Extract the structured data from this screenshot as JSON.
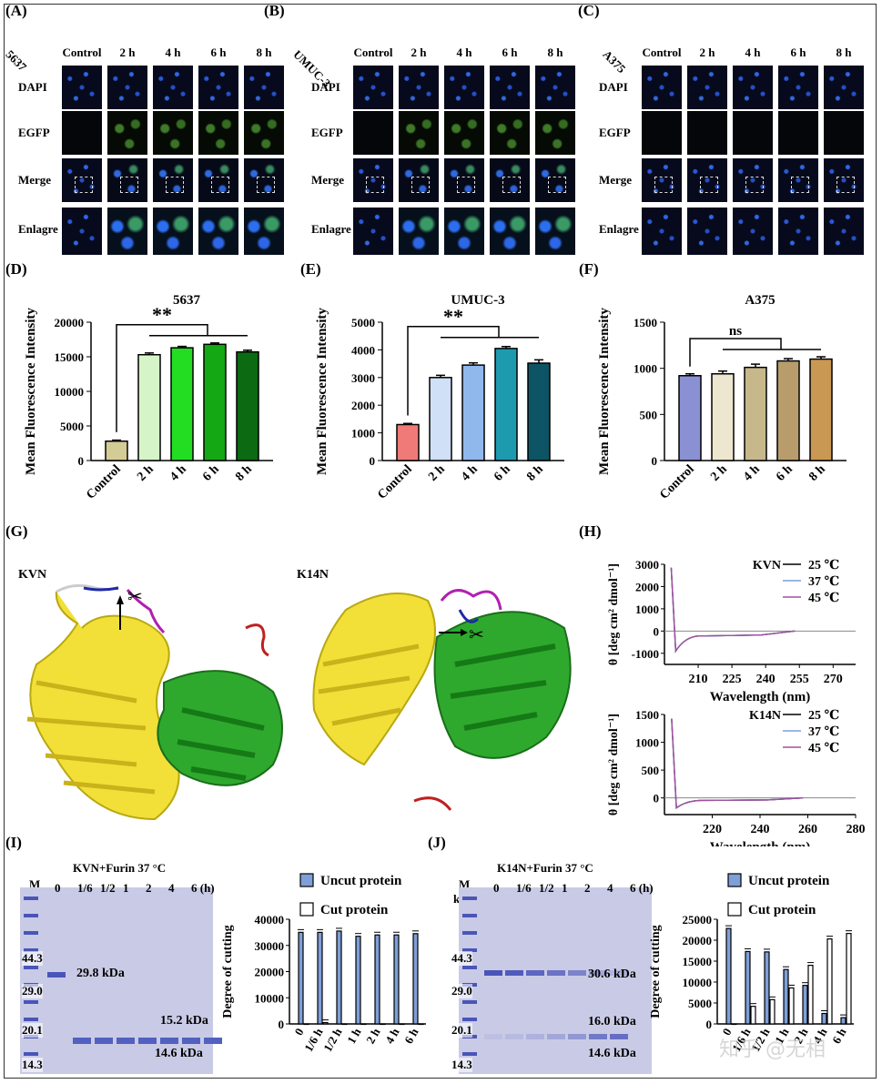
{
  "panels": {
    "A": {
      "label": "(A)",
      "cell_line": "5637",
      "columns": [
        "Control",
        "2 h",
        "4 h",
        "6 h",
        "8 h"
      ],
      "rows": [
        "DAPI",
        "EGFP",
        "Merge",
        "Enlagre"
      ]
    },
    "B": {
      "label": "(B)",
      "cell_line": "UMUC-3",
      "columns": [
        "Control",
        "2 h",
        "4 h",
        "6 h",
        "8 h"
      ],
      "rows": [
        "DAPI",
        "EGFP",
        "Merge",
        "Enlagre"
      ]
    },
    "C": {
      "label": "(C)",
      "cell_line": "A375",
      "columns": [
        "Control",
        "2 h",
        "4 h",
        "6 h",
        "8 h"
      ],
      "rows": [
        "DAPI",
        "EGFP",
        "Merge",
        "Enlagre"
      ]
    },
    "D": {
      "label": "(D)"
    },
    "E": {
      "label": "(E)"
    },
    "F": {
      "label": "(F)"
    },
    "G": {
      "label": "(G)",
      "structures": [
        "KVN",
        "K14N"
      ]
    },
    "H": {
      "label": "(H)"
    },
    "I": {
      "label": "(I)",
      "gel_title": "KVN+Furin 37 °C",
      "marker": "M",
      "marker_unit": "kDa",
      "lanes": [
        "0",
        "1/6",
        "1/2",
        "1",
        "2",
        "4",
        "6 (h)"
      ],
      "markers": [
        "44.3",
        "29.0",
        "20.1",
        "14.3"
      ],
      "bands": [
        "29.8 kDa",
        "15.2 kDa",
        "14.6 kDa"
      ]
    },
    "J": {
      "label": "(J)",
      "gel_title": "K14N+Furin 37 °C",
      "marker": "M",
      "marker_unit": "kDa",
      "lanes": [
        "0",
        "1/6",
        "1/2",
        "1",
        "2",
        "4",
        "6 (h)"
      ],
      "markers": [
        "44.3",
        "29.0",
        "20.1",
        "14.3"
      ],
      "bands": [
        "30.6 kDa",
        "16.0 kDa",
        "14.6 kDa"
      ]
    }
  },
  "watermark": "知乎 @无相",
  "colors": {
    "bars_D": [
      "#d4cc95",
      "#d5f5c8",
      "#22dd22",
      "#14a814",
      "#0b6a12"
    ],
    "bars_E": [
      "#f07a78",
      "#cfe0f7",
      "#90b8ec",
      "#1e9aae",
      "#0d5464"
    ],
    "bars_F": [
      "#8a91d3",
      "#eee7cf",
      "#c7b88c",
      "#b89c6c",
      "#c99852"
    ]
  },
  "chart_data": [
    {
      "id": "D",
      "type": "bar",
      "title": "5637",
      "ylabel": "Mean Fluorescence Intensity",
      "categories": [
        "Control",
        "2 h",
        "4 h",
        "6 h",
        "8 h"
      ],
      "values": [
        2800,
        15300,
        16300,
        16800,
        15700
      ],
      "errors": [
        150,
        250,
        200,
        200,
        250
      ],
      "ylim": [
        0,
        20000
      ],
      "yticks": [
        "0",
        "5000",
        "10000",
        "15000",
        "20000"
      ],
      "significance": "**"
    },
    {
      "id": "E",
      "type": "bar",
      "title": "UMUC-3",
      "ylabel": "Mean Fluorescence Intensity",
      "categories": [
        "Control",
        "2 h",
        "4 h",
        "6 h",
        "8 h"
      ],
      "values": [
        1300,
        3000,
        3450,
        4050,
        3520
      ],
      "errors": [
        40,
        80,
        80,
        70,
        120
      ],
      "ylim": [
        0,
        5000
      ],
      "yticks": [
        "0",
        "1000",
        "2000",
        "3000",
        "4000",
        "5000"
      ],
      "significance": "**"
    },
    {
      "id": "F",
      "type": "bar",
      "title": "A375",
      "ylabel": "Mean Fluorescence Intensity",
      "categories": [
        "Control",
        "2 h",
        "4 h",
        "6 h",
        "8 h"
      ],
      "values": [
        920,
        940,
        1010,
        1080,
        1100
      ],
      "errors": [
        20,
        30,
        35,
        25,
        25
      ],
      "ylim": [
        0,
        1500
      ],
      "yticks": [
        "0",
        "500",
        "1000",
        "1500"
      ],
      "significance": "ns"
    },
    {
      "id": "H1",
      "type": "line",
      "legend_title": "KVN",
      "series_names": [
        "25 ℃",
        "37 ℃",
        "45 ℃"
      ],
      "ylabel": "θ [deg cm² dmol⁻¹]",
      "xlabel": "Wavelength (nm)",
      "xticks": [
        "210",
        "225",
        "240",
        "255",
        "270"
      ],
      "yticks": [
        "3000",
        "2000",
        "1000",
        "0",
        "-1000"
      ],
      "xlim": [
        195,
        280
      ],
      "ylim": [
        -1500,
        3000
      ]
    },
    {
      "id": "H2",
      "type": "line",
      "legend_title": "K14N",
      "series_names": [
        "25 ℃",
        "37 ℃",
        "45 ℃"
      ],
      "ylabel": "θ [deg cm² dmol⁻¹]",
      "xlabel": "Wavelength (nm)",
      "xticks": [
        "220",
        "240",
        "260",
        "280"
      ],
      "yticks": [
        "1500",
        "1000",
        "500",
        "0"
      ],
      "xlim": [
        200,
        280
      ],
      "ylim": [
        -300,
        1500
      ]
    },
    {
      "id": "I",
      "type": "bar",
      "ylabel": "Degree of cutting",
      "categories": [
        "0",
        "1/6 h",
        "1/2 h",
        "1 h",
        "2 h",
        "4 h",
        "6 h"
      ],
      "series": [
        {
          "name": "Uncut protein",
          "values": [
            35000,
            35000,
            35500,
            33500,
            34000,
            34000,
            34500
          ]
        },
        {
          "name": "Cut protein",
          "values": [
            0,
            500,
            0,
            0,
            0,
            0,
            0
          ]
        }
      ],
      "ylim": [
        0,
        40000
      ],
      "yticks": [
        "0",
        "10000",
        "20000",
        "30000",
        "40000"
      ]
    },
    {
      "id": "J",
      "type": "bar",
      "ylabel": "Degree of cutting",
      "categories": [
        "0",
        "1/6 h",
        "1/2 h",
        "1 h",
        "2 h",
        "4 h",
        "6 h"
      ],
      "series": [
        {
          "name": "Uncut protein",
          "values": [
            22800,
            17300,
            17200,
            13000,
            9200,
            2500,
            1500
          ]
        },
        {
          "name": "Cut protein",
          "values": [
            0,
            4200,
            5800,
            8600,
            14000,
            20300,
            21600
          ]
        }
      ],
      "ylim": [
        0,
        25000
      ],
      "yticks": [
        "0",
        "5000",
        "10000",
        "15000",
        "20000",
        "25000"
      ]
    }
  ]
}
